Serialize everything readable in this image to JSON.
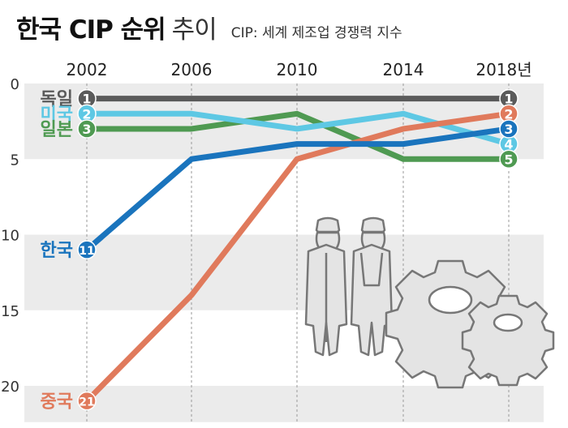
{
  "title": {
    "main": "한국 CIP 순위",
    "light": "추이"
  },
  "subtitle": "CIP: 세계 제조업 경쟁력 지수",
  "chart_data": {
    "type": "line",
    "x": [
      "2002",
      "2006",
      "2010",
      "2014",
      "2018"
    ],
    "x_tick_labels": [
      "2002",
      "2006",
      "2010",
      "2014",
      "2018년"
    ],
    "ylim": [
      0,
      22
    ],
    "y_inverted": true,
    "y_ticks": [
      "0",
      "5",
      "10",
      "15",
      "20"
    ],
    "grid": "alternating horizontal bands, dashed vertical lines at each year",
    "series": [
      {
        "name": "독일",
        "color": "#5a5a5a",
        "values": [
          1,
          1,
          1,
          1,
          1
        ],
        "start_label": "1",
        "end_label": "1"
      },
      {
        "name": "미국",
        "color": "#5ec8e4",
        "values": [
          2,
          2,
          3,
          2,
          4
        ],
        "start_label": "2",
        "end_label": "4"
      },
      {
        "name": "일본",
        "color": "#4f9a52",
        "values": [
          3,
          3,
          2,
          5,
          5
        ],
        "start_label": "3",
        "end_label": "5"
      },
      {
        "name": "중국",
        "color": "#e07a5c",
        "values": [
          21,
          14,
          5,
          3,
          2
        ],
        "start_label": "21",
        "end_label": "2"
      },
      {
        "name": "한국",
        "color": "#1a74bd",
        "values": [
          11,
          5,
          4,
          4,
          3
        ],
        "start_label": "11",
        "end_label": "3"
      }
    ]
  },
  "illustration": {
    "icons": [
      "worker-icon",
      "worker-icon",
      "gear-icon",
      "gear-icon"
    ]
  }
}
